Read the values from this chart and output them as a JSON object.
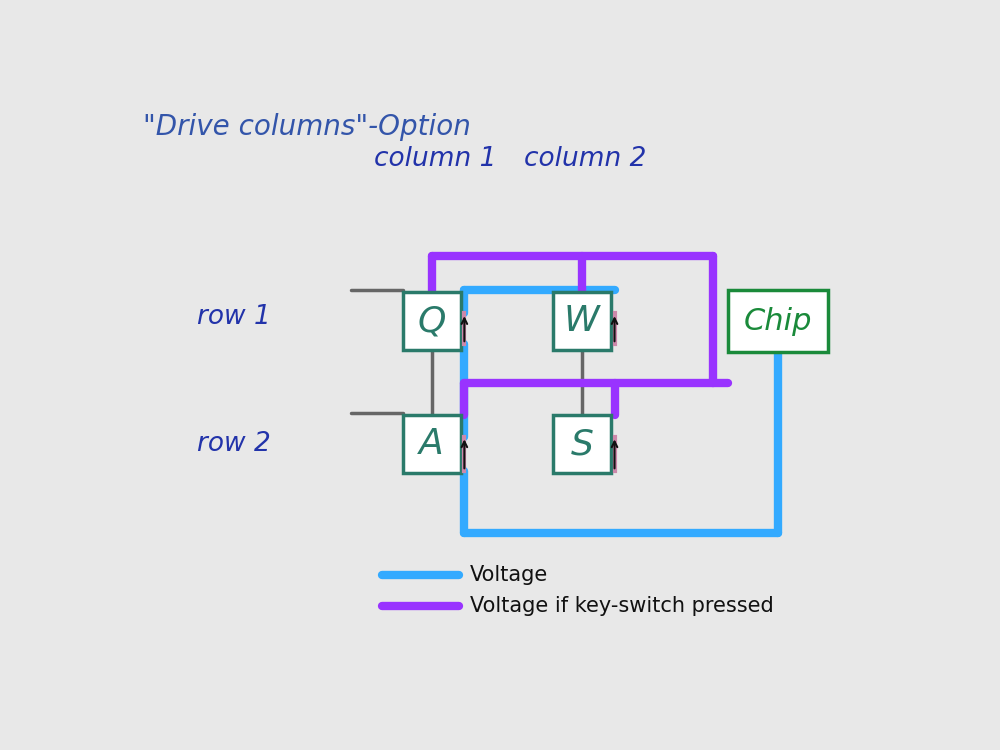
{
  "title": "\"Drive columns\"-Option",
  "title_color": "#3355aa",
  "title_fontsize": 20,
  "bg_color": "#e8e8e8",
  "col1_label": "column 1",
  "col2_label": "column 2",
  "row1_label": "row 1",
  "row2_label": "row 2",
  "label_color": "#2233aa",
  "label_fontsize": 19,
  "switch_color": "#2a7a6a",
  "chip_color": "#1a8a3a",
  "blue_color": "#33aaff",
  "purple_color": "#9933ff",
  "gray_color": "#666666",
  "pink_color": "#cc88aa",
  "black_color": "#111111",
  "legend_blue_label": "Voltage",
  "legend_purple_label": "Voltage if key-switch pressed"
}
